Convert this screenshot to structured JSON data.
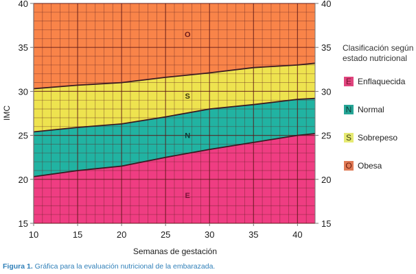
{
  "chart_data": {
    "type": "area",
    "title": "",
    "xlabel": "Semanas de gestación",
    "ylabel": "IMC",
    "xlim": [
      10,
      42
    ],
    "ylim": [
      15,
      40
    ],
    "x_ticks": [
      10,
      15,
      20,
      25,
      30,
      35,
      40
    ],
    "y_ticks": [
      15,
      20,
      25,
      30,
      35,
      40
    ],
    "grid": "minor every 1 unit, major every 5",
    "x": [
      10,
      15,
      20,
      25,
      30,
      35,
      40,
      42
    ],
    "boundaries": [
      {
        "name": "E/N (Enflaquecida-Normal)",
        "values": [
          20.3,
          21.0,
          21.5,
          22.5,
          23.4,
          24.2,
          25.0,
          25.2
        ]
      },
      {
        "name": "N/S (Normal-Sobrepeso)",
        "values": [
          25.4,
          25.9,
          26.3,
          27.1,
          28.0,
          28.5,
          29.1,
          29.2
        ]
      },
      {
        "name": "S/O (Sobrepeso-Obesa)",
        "values": [
          30.3,
          30.7,
          31.0,
          31.6,
          32.1,
          32.7,
          33.0,
          33.2
        ]
      }
    ],
    "series": [
      {
        "name": "Enflaquecida",
        "letter": "E",
        "color": "#ef3d82"
      },
      {
        "name": "Normal",
        "letter": "N",
        "color": "#21b3a2"
      },
      {
        "name": "Sobrepeso",
        "letter": "S",
        "color": "#eee34f"
      },
      {
        "name": "Obesa",
        "letter": "O",
        "color": "#f98449"
      }
    ],
    "region_labels": [
      {
        "letter": "O",
        "x": 27.5,
        "y": 36.5
      },
      {
        "letter": "S",
        "x": 27.5,
        "y": 29.5
      },
      {
        "letter": "N",
        "x": 27.5,
        "y": 25.0
      },
      {
        "letter": "E",
        "x": 27.5,
        "y": 18.2
      }
    ],
    "legend_position": "right"
  },
  "legend": {
    "title_line1": "Clasificación según",
    "title_line2": "estado nutricional",
    "items": [
      {
        "letter": "E",
        "label": "Enflaquecida",
        "swatch": "#e0457e",
        "text_color": "#7a1030"
      },
      {
        "letter": "N",
        "label": "Normal",
        "swatch": "#25a596",
        "text_color": "#0b3d38"
      },
      {
        "letter": "S",
        "label": "Sobrepeso",
        "swatch": "#e6ea72",
        "text_color": "#3a3a10"
      },
      {
        "letter": "O",
        "label": "Obesa",
        "swatch": "#e07a56",
        "text_color": "#6a1a08"
      }
    ]
  },
  "caption": {
    "bold": "Figura 1.",
    "text": " Gráfica para la evaluación nutricional de la embarazada."
  }
}
